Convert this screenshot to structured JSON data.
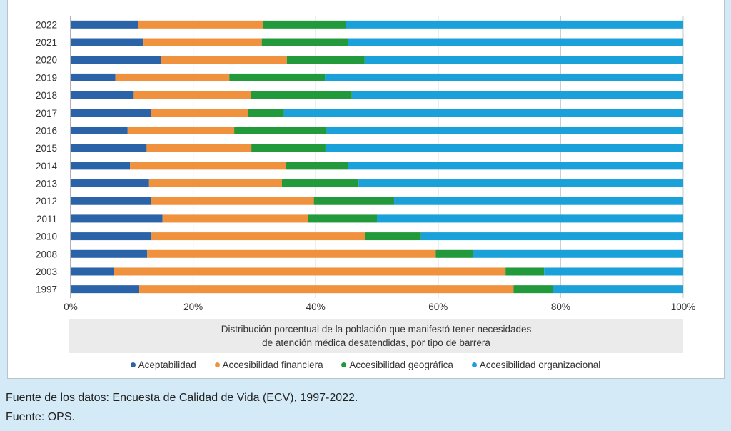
{
  "chart_data": {
    "type": "bar",
    "orientation": "horizontal",
    "stacked": true,
    "title": "Distribución porcentual de la población que manifestó tener necesidades de atención médica desatendidas, por tipo de barrera",
    "title_lines": [
      "Distribución porcentual de la población que manifestó tener necesidades",
      "de atención médica desatendidas, por tipo de barrera"
    ],
    "categories": [
      "2022",
      "2021",
      "2020",
      "2019",
      "2018",
      "2017",
      "2016",
      "2015",
      "2014",
      "2013",
      "2012",
      "2011",
      "2010",
      "2008",
      "2003",
      "1997"
    ],
    "series": [
      {
        "name": "Aceptabilidad",
        "color": "#2a63a8",
        "values": [
          11.0,
          11.9,
          14.8,
          7.3,
          10.3,
          13.1,
          9.3,
          12.4,
          9.7,
          12.8,
          13.1,
          15.0,
          13.2,
          12.5,
          7.1,
          11.2
        ]
      },
      {
        "name": "Accesibilidad financiera",
        "color": "#f0913e",
        "values": [
          20.4,
          19.3,
          20.5,
          18.6,
          19.1,
          15.9,
          17.4,
          17.1,
          25.5,
          21.7,
          26.6,
          23.7,
          34.9,
          47.1,
          63.9,
          61.1
        ]
      },
      {
        "name": "Accesibilidad geográfica",
        "color": "#22993a",
        "values": [
          13.5,
          14.1,
          12.7,
          15.6,
          16.5,
          5.8,
          15.1,
          12.1,
          10.1,
          12.5,
          13.1,
          11.3,
          9.1,
          6.1,
          6.3,
          6.4
        ]
      },
      {
        "name": "Accesibilidad organizacional",
        "color": "#1ba1d9",
        "values": [
          55.1,
          54.7,
          52.0,
          58.5,
          54.1,
          65.2,
          58.2,
          58.4,
          54.7,
          53.0,
          47.2,
          50.0,
          42.8,
          34.3,
          22.7,
          21.3
        ]
      }
    ],
    "xlim": [
      0,
      100
    ],
    "xticks": [
      "0%",
      "20%",
      "40%",
      "60%",
      "80%",
      "100%"
    ],
    "grid": true,
    "legend_placement": "bottom"
  },
  "footer": {
    "source_data": "Fuente de los datos: Encuesta de Calidad de Vida (ECV), 1997-2022.",
    "source": "Fuente: OPS."
  }
}
